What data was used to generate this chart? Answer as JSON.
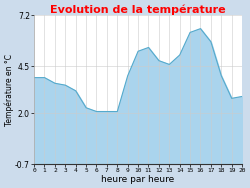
{
  "title": "Evolution de la température",
  "title_color": "#ff0000",
  "xlabel": "heure par heure",
  "ylabel": "Température en °C",
  "background_color": "#ccdcec",
  "plot_bg_color": "#ffffff",
  "fill_color": "#aad4ed",
  "line_color": "#55aacc",
  "ylim": [
    -0.7,
    7.2
  ],
  "yticks": [
    -0.7,
    2.0,
    4.5,
    7.2
  ],
  "hours": [
    0,
    1,
    2,
    3,
    4,
    5,
    6,
    7,
    8,
    9,
    10,
    11,
    12,
    13,
    14,
    15,
    16,
    17,
    18,
    19,
    20
  ],
  "temps": [
    3.9,
    3.9,
    3.6,
    3.5,
    3.2,
    2.3,
    2.1,
    2.1,
    2.1,
    4.0,
    5.3,
    5.5,
    4.8,
    4.6,
    5.1,
    6.3,
    6.5,
    5.8,
    4.0,
    2.8,
    2.9
  ]
}
